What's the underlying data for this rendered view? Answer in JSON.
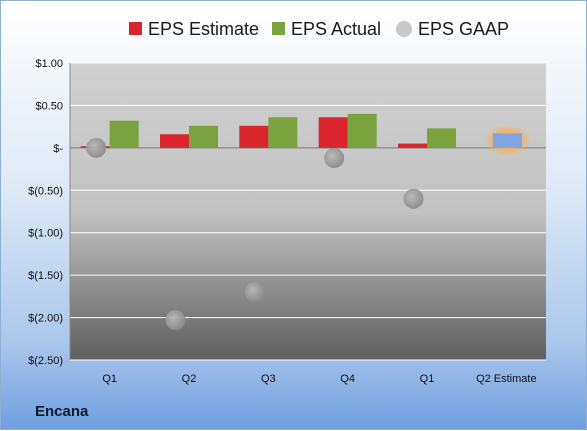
{
  "company": "Encana",
  "chart_data": {
    "type": "bar",
    "title": "",
    "xlabel": "",
    "ylabel": "",
    "categories": [
      "Q1",
      "Q2",
      "Q3",
      "Q4",
      "Q1",
      "Q2 Estimate"
    ],
    "ylim": [
      -2.5,
      1.0
    ],
    "yticks": [
      1.0,
      0.5,
      0.0,
      -0.5,
      -1.0,
      -1.5,
      -2.0,
      -2.5
    ],
    "ytick_labels": [
      "$1.00",
      "$0.50",
      "$-",
      "$(0.50)",
      "$(1.00)",
      "$(1.50)",
      "$(2.00)",
      "$(2.50)"
    ],
    "grid": true,
    "legend_position": "top",
    "series": [
      {
        "name": "EPS Estimate",
        "kind": "bar",
        "color": "#d9262c",
        "values": [
          0.02,
          0.16,
          0.26,
          0.36,
          0.05,
          null
        ]
      },
      {
        "name": "EPS Actual",
        "kind": "bar",
        "color": "#7aa23f",
        "values": [
          0.32,
          0.26,
          0.36,
          0.4,
          0.23,
          null
        ]
      },
      {
        "name": "EPS GAAP",
        "kind": "scatter",
        "color": "#a6a6a6",
        "values": [
          0.0,
          -2.03,
          -1.7,
          -0.12,
          -0.6,
          null
        ]
      }
    ],
    "highlight": {
      "category_index": 5,
      "value": 0.17,
      "color": "#7fa6e0",
      "glow": "#f0a050"
    }
  }
}
